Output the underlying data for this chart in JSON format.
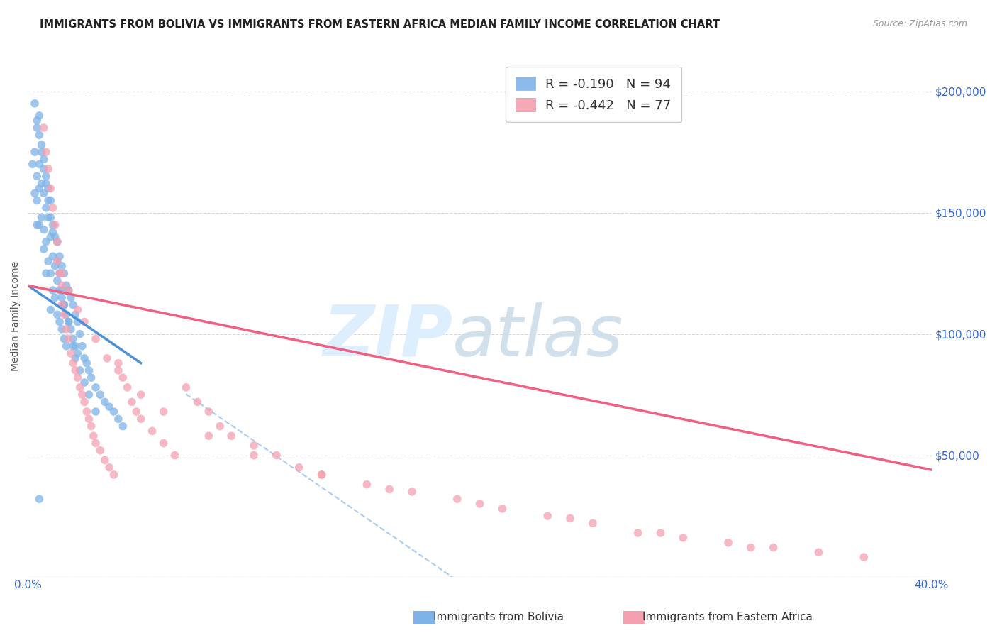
{
  "title": "IMMIGRANTS FROM BOLIVIA VS IMMIGRANTS FROM EASTERN AFRICA MEDIAN FAMILY INCOME CORRELATION CHART",
  "source": "Source: ZipAtlas.com",
  "ylabel": "Median Family Income",
  "r_bolivia": -0.19,
  "n_bolivia": 94,
  "r_eastern_africa": -0.442,
  "n_eastern_africa": 77,
  "bolivia_color": "#7EB3E8",
  "eastern_africa_color": "#F4A0B0",
  "bolivia_line_color": "#4A90D9",
  "eastern_africa_line_color": "#F06080",
  "dashed_line_color": "#AACCEE",
  "y_ticks": [
    0,
    50000,
    100000,
    150000,
    200000
  ],
  "y_tick_labels": [
    "",
    "$50,000",
    "$100,000",
    "$150,000",
    "$200,000"
  ],
  "x_min": 0.0,
  "x_max": 0.4,
  "y_min": 0,
  "y_max": 215000,
  "legend_bolivia": "Immigrants from Bolivia",
  "legend_eastern_africa": "Immigrants from Eastern Africa",
  "bolivia_scatter_x": [
    0.003,
    0.004,
    0.004,
    0.004,
    0.005,
    0.005,
    0.005,
    0.005,
    0.006,
    0.006,
    0.006,
    0.007,
    0.007,
    0.007,
    0.007,
    0.008,
    0.008,
    0.008,
    0.008,
    0.009,
    0.009,
    0.009,
    0.01,
    0.01,
    0.01,
    0.01,
    0.011,
    0.011,
    0.011,
    0.012,
    0.012,
    0.012,
    0.013,
    0.013,
    0.013,
    0.014,
    0.014,
    0.014,
    0.015,
    0.015,
    0.015,
    0.016,
    0.016,
    0.016,
    0.017,
    0.017,
    0.017,
    0.018,
    0.018,
    0.019,
    0.019,
    0.02,
    0.02,
    0.021,
    0.021,
    0.022,
    0.022,
    0.023,
    0.024,
    0.025,
    0.026,
    0.027,
    0.028,
    0.03,
    0.032,
    0.034,
    0.036,
    0.038,
    0.04,
    0.042,
    0.003,
    0.004,
    0.005,
    0.006,
    0.007,
    0.008,
    0.009,
    0.01,
    0.011,
    0.013,
    0.014,
    0.015,
    0.016,
    0.018,
    0.02,
    0.021,
    0.023,
    0.025,
    0.027,
    0.03,
    0.002,
    0.003,
    0.004,
    0.005
  ],
  "bolivia_scatter_y": [
    175000,
    185000,
    165000,
    155000,
    190000,
    170000,
    160000,
    145000,
    178000,
    162000,
    148000,
    172000,
    158000,
    143000,
    135000,
    165000,
    152000,
    138000,
    125000,
    160000,
    148000,
    130000,
    155000,
    140000,
    125000,
    110000,
    145000,
    132000,
    118000,
    140000,
    128000,
    115000,
    138000,
    122000,
    108000,
    132000,
    118000,
    105000,
    128000,
    115000,
    102000,
    125000,
    112000,
    98000,
    120000,
    108000,
    95000,
    118000,
    105000,
    115000,
    102000,
    112000,
    98000,
    108000,
    95000,
    105000,
    92000,
    100000,
    95000,
    90000,
    88000,
    85000,
    82000,
    78000,
    75000,
    72000,
    70000,
    68000,
    65000,
    62000,
    195000,
    188000,
    182000,
    175000,
    168000,
    162000,
    155000,
    148000,
    142000,
    130000,
    125000,
    118000,
    112000,
    105000,
    95000,
    90000,
    85000,
    80000,
    75000,
    68000,
    170000,
    158000,
    145000,
    32000
  ],
  "eastern_africa_scatter_x": [
    0.007,
    0.008,
    0.009,
    0.01,
    0.011,
    0.012,
    0.013,
    0.013,
    0.014,
    0.015,
    0.015,
    0.016,
    0.017,
    0.018,
    0.019,
    0.02,
    0.021,
    0.022,
    0.023,
    0.024,
    0.025,
    0.026,
    0.027,
    0.028,
    0.029,
    0.03,
    0.032,
    0.034,
    0.036,
    0.038,
    0.04,
    0.042,
    0.044,
    0.046,
    0.048,
    0.05,
    0.055,
    0.06,
    0.065,
    0.07,
    0.075,
    0.08,
    0.085,
    0.09,
    0.1,
    0.11,
    0.12,
    0.13,
    0.15,
    0.17,
    0.19,
    0.21,
    0.23,
    0.25,
    0.27,
    0.29,
    0.31,
    0.33,
    0.35,
    0.37,
    0.015,
    0.018,
    0.022,
    0.025,
    0.03,
    0.035,
    0.04,
    0.05,
    0.06,
    0.08,
    0.1,
    0.13,
    0.16,
    0.2,
    0.24,
    0.28,
    0.32
  ],
  "eastern_africa_scatter_y": [
    185000,
    175000,
    168000,
    160000,
    152000,
    145000,
    138000,
    130000,
    125000,
    120000,
    112000,
    108000,
    102000,
    98000,
    92000,
    88000,
    85000,
    82000,
    78000,
    75000,
    72000,
    68000,
    65000,
    62000,
    58000,
    55000,
    52000,
    48000,
    45000,
    42000,
    88000,
    82000,
    78000,
    72000,
    68000,
    65000,
    60000,
    55000,
    50000,
    78000,
    72000,
    68000,
    62000,
    58000,
    54000,
    50000,
    45000,
    42000,
    38000,
    35000,
    32000,
    28000,
    25000,
    22000,
    18000,
    16000,
    14000,
    12000,
    10000,
    8000,
    125000,
    118000,
    110000,
    105000,
    98000,
    90000,
    85000,
    75000,
    68000,
    58000,
    50000,
    42000,
    36000,
    30000,
    24000,
    18000,
    12000
  ]
}
